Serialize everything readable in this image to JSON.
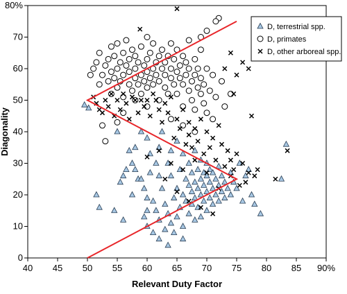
{
  "chart_data": {
    "type": "scatter",
    "xlabel": "Relevant Duty Factor",
    "ylabel": "Diagonality",
    "xlim": [
      40,
      90
    ],
    "ylim": [
      0,
      80
    ],
    "x_ticks": [
      40,
      45,
      50,
      55,
      60,
      65,
      70,
      75,
      80,
      85,
      90
    ],
    "x_tick_labels": [
      "40",
      "45",
      "50",
      "55",
      "60",
      "65",
      "70",
      "75",
      "80",
      "85",
      "90%"
    ],
    "y_ticks": [
      0,
      10,
      20,
      30,
      40,
      50,
      60,
      70,
      80
    ],
    "y_tick_labels": [
      "0",
      "10",
      "20",
      "30",
      "40",
      "50",
      "60",
      "70",
      "80%"
    ],
    "grid": false,
    "legend_position": "top-right",
    "boundary_line": {
      "color": "#e8262a",
      "points": [
        [
          50,
          0
        ],
        [
          75,
          25
        ],
        [
          50,
          50
        ],
        [
          75,
          75
        ]
      ]
    },
    "series": [
      {
        "name": "D, terrestrial spp.",
        "marker": "triangle",
        "color": "#a8c8e4",
        "points": [
          [
            49.5,
            48.5
          ],
          [
            50.2,
            47.5
          ],
          [
            52,
            16
          ],
          [
            54.5,
            15
          ],
          [
            55,
            40
          ],
          [
            55.5,
            24
          ],
          [
            56,
            26
          ],
          [
            56.5,
            28
          ],
          [
            57,
            34
          ],
          [
            57.5,
            20
          ],
          [
            57.5,
            30
          ],
          [
            58,
            28
          ],
          [
            58.5,
            25
          ],
          [
            59,
            40
          ],
          [
            59,
            25
          ],
          [
            59.5,
            13
          ],
          [
            59.5,
            22
          ],
          [
            60,
            15
          ],
          [
            60,
            10
          ],
          [
            60,
            38
          ],
          [
            60.5,
            33
          ],
          [
            60.5,
            27
          ],
          [
            61,
            18
          ],
          [
            61,
            8
          ],
          [
            61.5,
            30
          ],
          [
            61.5,
            15
          ],
          [
            62,
            12
          ],
          [
            62,
            35
          ],
          [
            62,
            6
          ],
          [
            62.5,
            40
          ],
          [
            62.5,
            22
          ],
          [
            63,
            17
          ],
          [
            63,
            9
          ],
          [
            63.5,
            14
          ],
          [
            63.5,
            30
          ],
          [
            63.5,
            4
          ],
          [
            64,
            11
          ],
          [
            64,
            26
          ],
          [
            64.5,
            19
          ],
          [
            64.5,
            8
          ],
          [
            65,
            13
          ],
          [
            65,
            22
          ],
          [
            65,
            37
          ],
          [
            65.5,
            16
          ],
          [
            65.5,
            28
          ],
          [
            66,
            10
          ],
          [
            66,
            20
          ],
          [
            66,
            33
          ],
          [
            66.5,
            18
          ],
          [
            66.5,
            25
          ],
          [
            67,
            14
          ],
          [
            67,
            23
          ],
          [
            67,
            30
          ],
          [
            67.5,
            17
          ],
          [
            67.5,
            21
          ],
          [
            67.5,
            27
          ],
          [
            68,
            12
          ],
          [
            68,
            19
          ],
          [
            68,
            24
          ],
          [
            68,
            34
          ],
          [
            68.5,
            16
          ],
          [
            68.5,
            22
          ],
          [
            68.5,
            28
          ],
          [
            69,
            13
          ],
          [
            69,
            20
          ],
          [
            69,
            25
          ],
          [
            69,
            31
          ],
          [
            69.5,
            18
          ],
          [
            69.5,
            23
          ],
          [
            69.5,
            27
          ],
          [
            70,
            15
          ],
          [
            70,
            21
          ],
          [
            70,
            26
          ],
          [
            70,
            30
          ],
          [
            70.5,
            19
          ],
          [
            70.5,
            24
          ],
          [
            70.5,
            28
          ],
          [
            71,
            17
          ],
          [
            71,
            22
          ],
          [
            71,
            27
          ],
          [
            71.5,
            20
          ],
          [
            71.5,
            25
          ],
          [
            72,
            18
          ],
          [
            72,
            23
          ],
          [
            72,
            29
          ],
          [
            72.5,
            21
          ],
          [
            72.5,
            26
          ],
          [
            73,
            19
          ],
          [
            73,
            24
          ],
          [
            73.5,
            22
          ],
          [
            74,
            20
          ],
          [
            74,
            27
          ],
          [
            74.5,
            24
          ],
          [
            75,
            22
          ],
          [
            75.5,
            30
          ],
          [
            76,
            18
          ],
          [
            76.5,
            26
          ],
          [
            77,
            28
          ],
          [
            77.5,
            20
          ],
          [
            78,
            17
          ],
          [
            79,
            14
          ],
          [
            82.5,
            25
          ],
          [
            83.3,
            36
          ],
          [
            51.5,
            20
          ],
          [
            56,
            12
          ],
          [
            58,
            35
          ],
          [
            60,
            19
          ],
          [
            62,
            26
          ],
          [
            64,
            34
          ],
          [
            66,
            6
          ]
        ]
      },
      {
        "name": "D, primates",
        "marker": "circle",
        "color": "#ffffff",
        "points": [
          [
            50.5,
            58
          ],
          [
            51,
            60
          ],
          [
            51.5,
            62
          ],
          [
            52,
            55
          ],
          [
            52,
            65
          ],
          [
            52.5,
            58
          ],
          [
            52.5,
            42
          ],
          [
            53,
            61
          ],
          [
            53,
            37
          ],
          [
            53.5,
            56
          ],
          [
            53.5,
            63
          ],
          [
            54,
            59
          ],
          [
            54,
            52
          ],
          [
            54,
            67
          ],
          [
            54.5,
            57
          ],
          [
            54.5,
            64
          ],
          [
            55,
            60
          ],
          [
            55,
            54
          ],
          [
            55,
            68
          ],
          [
            55.5,
            62
          ],
          [
            55.5,
            56
          ],
          [
            56,
            58
          ],
          [
            56,
            65
          ],
          [
            56,
            51
          ],
          [
            56.5,
            61
          ],
          [
            56.5,
            69
          ],
          [
            57,
            55
          ],
          [
            57,
            63
          ],
          [
            57,
            59
          ],
          [
            57.5,
            66
          ],
          [
            57.5,
            53
          ],
          [
            58,
            60
          ],
          [
            58,
            57
          ],
          [
            58,
            64
          ],
          [
            58.5,
            62
          ],
          [
            58.5,
            55
          ],
          [
            59,
            58
          ],
          [
            59,
            67
          ],
          [
            59,
            52
          ],
          [
            59.5,
            61
          ],
          [
            59.5,
            56
          ],
          [
            60,
            63
          ],
          [
            60,
            59
          ],
          [
            60,
            54
          ],
          [
            60,
            70
          ],
          [
            60.5,
            57
          ],
          [
            60.5,
            65
          ],
          [
            61,
            60
          ],
          [
            61,
            55
          ],
          [
            61,
            68
          ],
          [
            61.5,
            62
          ],
          [
            61.5,
            58
          ],
          [
            62,
            56
          ],
          [
            62,
            64
          ],
          [
            62,
            50
          ],
          [
            62.5,
            60
          ],
          [
            62.5,
            66
          ],
          [
            63,
            58
          ],
          [
            63,
            54
          ],
          [
            63,
            62
          ],
          [
            63.5,
            64
          ],
          [
            63.5,
            52
          ],
          [
            64,
            60
          ],
          [
            64,
            57
          ],
          [
            64,
            68
          ],
          [
            64.5,
            55
          ],
          [
            64.5,
            63
          ],
          [
            65,
            59
          ],
          [
            65,
            52
          ],
          [
            65,
            66
          ],
          [
            65.5,
            57
          ],
          [
            65.5,
            61
          ],
          [
            66,
            55
          ],
          [
            66,
            64
          ],
          [
            66,
            48
          ],
          [
            66.5,
            58
          ],
          [
            66.5,
            62
          ],
          [
            67,
            53
          ],
          [
            67,
            60
          ],
          [
            67,
            69
          ],
          [
            67.5,
            56
          ],
          [
            67.5,
            50
          ],
          [
            68,
            58
          ],
          [
            68,
            63
          ],
          [
            68,
            47
          ],
          [
            68.5,
            54
          ],
          [
            68.5,
            60
          ],
          [
            69,
            52
          ],
          [
            69,
            57
          ],
          [
            69,
            66
          ],
          [
            69.5,
            55
          ],
          [
            69.5,
            49
          ],
          [
            70,
            60
          ],
          [
            70,
            46
          ],
          [
            70.5,
            53
          ],
          [
            71,
            58
          ],
          [
            71,
            44
          ],
          [
            71.5,
            51
          ],
          [
            72,
            76
          ],
          [
            72.5,
            56
          ],
          [
            73,
            48
          ],
          [
            74,
            52
          ],
          [
            69,
            70
          ],
          [
            70,
            72
          ],
          [
            71.5,
            75
          ],
          [
            60,
            48
          ],
          [
            58,
            50
          ],
          [
            56,
            46
          ],
          [
            55,
            43
          ],
          [
            64,
            44
          ],
          [
            66,
            42
          ],
          [
            68,
            40
          ]
        ]
      },
      {
        "name": "D, other arboreal spp.",
        "marker": "cross",
        "color": "#000000",
        "points": [
          [
            51,
            51
          ],
          [
            51.5,
            49
          ],
          [
            52,
            47
          ],
          [
            52.5,
            46
          ],
          [
            53,
            50
          ],
          [
            53.5,
            48
          ],
          [
            54,
            52
          ],
          [
            54.5,
            45
          ],
          [
            55,
            50
          ],
          [
            55.5,
            47
          ],
          [
            56,
            52
          ],
          [
            56.5,
            49
          ],
          [
            57,
            44
          ],
          [
            57.5,
            51
          ],
          [
            58,
            50
          ],
          [
            58.5,
            46
          ],
          [
            58.8,
            72.5
          ],
          [
            59,
            50
          ],
          [
            59.5,
            48
          ],
          [
            60,
            50
          ],
          [
            60.5,
            45
          ],
          [
            61,
            52
          ],
          [
            61.5,
            50
          ],
          [
            62,
            47
          ],
          [
            62.5,
            43
          ],
          [
            63,
            49
          ],
          [
            63.5,
            46
          ],
          [
            64,
            51
          ],
          [
            64.5,
            38
          ],
          [
            65,
            44
          ],
          [
            65.5,
            41
          ],
          [
            65,
            79
          ],
          [
            66,
            47
          ],
          [
            66.5,
            36
          ],
          [
            67,
            43
          ],
          [
            67,
            39
          ],
          [
            67.5,
            35
          ],
          [
            68,
            41
          ],
          [
            68.5,
            37
          ],
          [
            69,
            44
          ],
          [
            69.5,
            33
          ],
          [
            70,
            40
          ],
          [
            70.5,
            35
          ],
          [
            71,
            38
          ],
          [
            71.5,
            31
          ],
          [
            72,
            42
          ],
          [
            72.5,
            36
          ],
          [
            73,
            29
          ],
          [
            73.5,
            34
          ],
          [
            74,
            26
          ],
          [
            74,
            31
          ],
          [
            74.5,
            28
          ],
          [
            75,
            33
          ],
          [
            75.5,
            23
          ],
          [
            76,
            30
          ],
          [
            76.5,
            24
          ],
          [
            77,
            27
          ],
          [
            77.5,
            45
          ],
          [
            78,
            26
          ],
          [
            78.5,
            28
          ],
          [
            73,
            60
          ],
          [
            74,
            65
          ],
          [
            75,
            58
          ],
          [
            76,
            62
          ],
          [
            77,
            60
          ],
          [
            74.5,
            52
          ],
          [
            64,
            30
          ],
          [
            62,
            34
          ],
          [
            60,
            32
          ],
          [
            63,
            25
          ],
          [
            65,
            21
          ],
          [
            67,
            18
          ],
          [
            69,
            16
          ],
          [
            71,
            14
          ],
          [
            66,
            28
          ],
          [
            68,
            31
          ],
          [
            70,
            27
          ],
          [
            72,
            22
          ],
          [
            81.5,
            25
          ],
          [
            83.5,
            34
          ]
        ]
      }
    ]
  }
}
